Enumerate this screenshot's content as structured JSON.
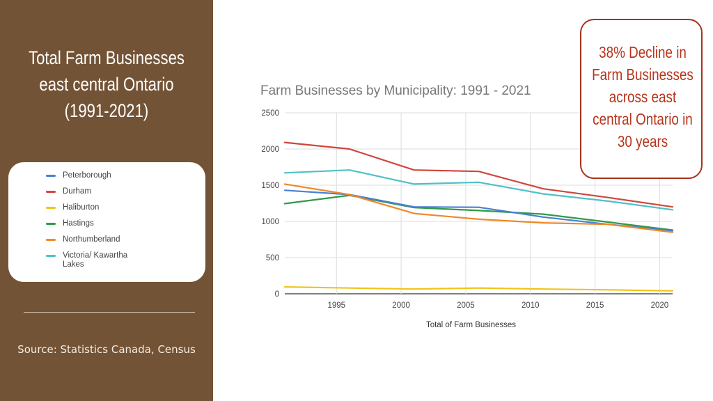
{
  "sidebar": {
    "title_lines": [
      "Total Farm Businesses",
      "east central Ontario",
      "(1991-2021)"
    ],
    "source": "Source: Statistics Canada, Census"
  },
  "callout": {
    "lines": [
      "38% Decline in",
      "Farm Businesses",
      "across east",
      "central Ontario in",
      "30 years"
    ]
  },
  "colors": {
    "sidebar_bg": "#735336",
    "callout_border": "#a8321e",
    "callout_text": "#b8341d"
  },
  "chart_data": {
    "type": "line",
    "title": "Farm Businesses by Municipality: 1991 - 2021",
    "xlabel": "Total of Farm Businesses",
    "ylabel": "",
    "x": [
      1991,
      1996,
      2001,
      2006,
      2011,
      2016,
      2021
    ],
    "xlim": [
      1991,
      2021
    ],
    "ylim": [
      0,
      2500
    ],
    "xticks": [
      "1995",
      "2000",
      "2005",
      "2010",
      "2015",
      "2020"
    ],
    "yticks": [
      "0",
      "500",
      "1000",
      "1500",
      "2000",
      "2500"
    ],
    "grid": true,
    "legend": "left-panel",
    "series": [
      {
        "name": "Peterborough",
        "color": "#4a7fd1",
        "values": [
          1430,
          1370,
          1200,
          1195,
          1060,
          960,
          870
        ]
      },
      {
        "name": "Durham",
        "color": "#d0463c",
        "values": [
          2090,
          2000,
          1710,
          1690,
          1450,
          1330,
          1200
        ]
      },
      {
        "name": "Haliburton",
        "color": "#f2c31b",
        "values": [
          95,
          80,
          65,
          80,
          65,
          55,
          40
        ]
      },
      {
        "name": "Hastings",
        "color": "#2f9a49",
        "values": [
          1245,
          1360,
          1190,
          1150,
          1100,
          990,
          880
        ]
      },
      {
        "name": "Northumberland",
        "color": "#f0882a",
        "values": [
          1515,
          1370,
          1110,
          1030,
          980,
          960,
          850
        ]
      },
      {
        "name": "Victoria/ Kawartha Lakes",
        "color": "#4fc0c8",
        "values": [
          1670,
          1710,
          1515,
          1540,
          1380,
          1280,
          1160
        ]
      }
    ]
  }
}
